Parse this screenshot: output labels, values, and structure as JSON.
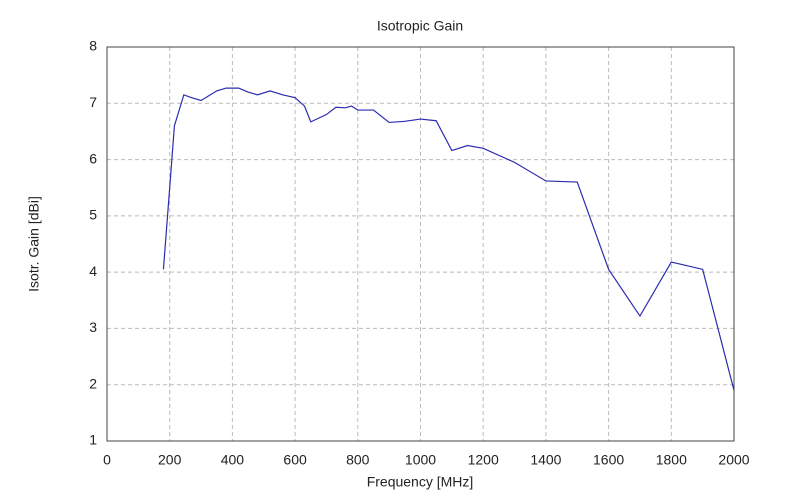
{
  "chart_data": {
    "type": "line",
    "title": "Isotropic Gain",
    "xlabel": "Frequency [MHz]",
    "ylabel": "Isotr. Gain [dBi]",
    "x": [
      180,
      200,
      215,
      245,
      270,
      300,
      350,
      380,
      420,
      450,
      480,
      520,
      560,
      600,
      630,
      650,
      700,
      730,
      760,
      780,
      800,
      850,
      900,
      950,
      1000,
      1050,
      1100,
      1150,
      1200,
      1300,
      1400,
      1500,
      1600,
      1700,
      1800,
      1900,
      2000
    ],
    "series": [
      {
        "name": "Isotropic Gain",
        "color": "#2b2bb0",
        "values": [
          4.05,
          5.5,
          6.6,
          7.15,
          7.1,
          7.05,
          7.22,
          7.27,
          7.27,
          7.2,
          7.15,
          7.22,
          7.15,
          7.1,
          6.95,
          6.67,
          6.8,
          6.93,
          6.92,
          6.95,
          6.88,
          6.88,
          6.66,
          6.68,
          6.72,
          6.69,
          6.16,
          6.25,
          6.2,
          5.95,
          5.62,
          5.6,
          4.05,
          3.22,
          4.18,
          4.05,
          1.9
        ]
      }
    ],
    "xlim": [
      0,
      2000
    ],
    "xticks": [
      0,
      200,
      400,
      600,
      800,
      1000,
      1200,
      1400,
      1600,
      1800,
      2000
    ],
    "ylim": [
      1,
      8
    ],
    "yticks": [
      1,
      2,
      3,
      4,
      5,
      6,
      7,
      8
    ],
    "grid": true
  }
}
